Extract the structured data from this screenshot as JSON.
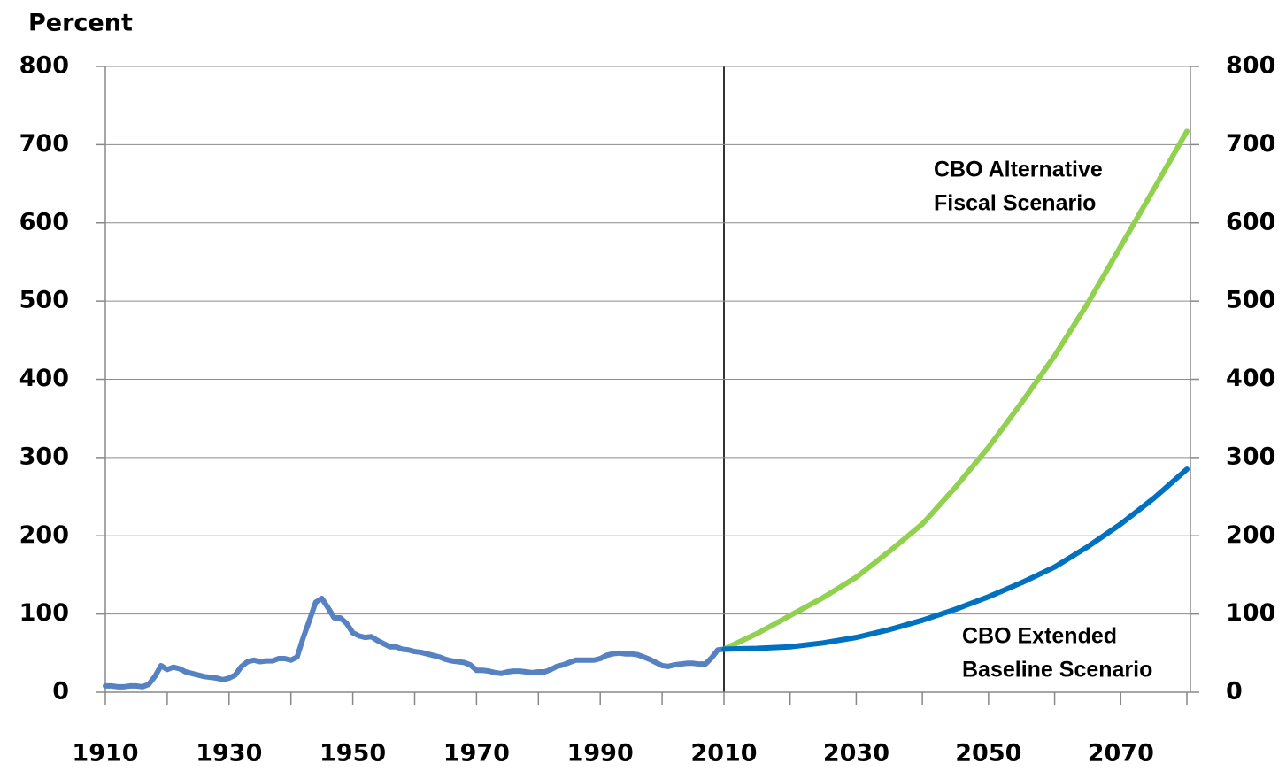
{
  "chart_data": [
    {
      "type": "line",
      "y_label": "Percent",
      "xlim": [
        1910,
        2010
      ],
      "xticks": [
        1910,
        1930,
        1950,
        1970,
        1990,
        2010
      ],
      "xminorticks": [
        1920,
        1940,
        1960,
        1980,
        2000
      ],
      "ylim": [
        0,
        800
      ],
      "yticks": [
        0,
        100,
        200,
        300,
        400,
        500,
        600,
        700,
        800
      ],
      "grid": true,
      "x": [
        1910,
        1911,
        1912,
        1913,
        1914,
        1915,
        1916,
        1917,
        1918,
        1919,
        1920,
        1921,
        1922,
        1923,
        1924,
        1925,
        1926,
        1927,
        1928,
        1929,
        1930,
        1931,
        1932,
        1933,
        1934,
        1935,
        1936,
        1937,
        1938,
        1939,
        1940,
        1941,
        1942,
        1943,
        1944,
        1945,
        1946,
        1947,
        1948,
        1949,
        1950,
        1951,
        1952,
        1953,
        1954,
        1955,
        1956,
        1957,
        1958,
        1959,
        1960,
        1961,
        1962,
        1963,
        1964,
        1965,
        1966,
        1967,
        1968,
        1969,
        1970,
        1971,
        1972,
        1973,
        1974,
        1975,
        1976,
        1977,
        1978,
        1979,
        1980,
        1981,
        1982,
        1983,
        1984,
        1985,
        1986,
        1987,
        1988,
        1989,
        1990,
        1991,
        1992,
        1993,
        1994,
        1995,
        1996,
        1997,
        1998,
        1999,
        2000,
        2001,
        2002,
        2003,
        2004,
        2005,
        2006,
        2007,
        2008,
        2009,
        2010
      ],
      "series": [
        {
          "color": "#5682c2",
          "values": [
            8,
            8,
            7,
            7,
            8,
            8,
            7,
            10,
            20,
            34,
            29,
            32,
            30,
            26,
            24,
            22,
            20,
            19,
            18,
            16,
            18,
            22,
            33,
            39,
            41,
            39,
            40,
            40,
            43,
            43,
            41,
            45,
            70,
            92,
            115,
            120,
            108,
            95,
            95,
            88,
            76,
            72,
            70,
            71,
            66,
            62,
            58,
            58,
            55,
            54,
            52,
            51,
            49,
            47,
            45,
            42,
            40,
            39,
            38,
            35,
            28,
            28,
            27,
            25,
            24,
            26,
            27,
            27,
            26,
            25,
            26,
            26,
            29,
            33,
            35,
            38,
            41,
            41,
            41,
            41,
            43,
            47,
            49,
            50,
            49,
            49,
            48,
            45,
            42,
            38,
            34,
            33,
            35,
            36,
            37,
            37,
            36,
            36,
            44,
            54,
            55
          ]
        }
      ]
    },
    {
      "type": "line",
      "xlim": [
        2010,
        2080
      ],
      "xticks": [
        2030,
        2050,
        2070
      ],
      "xminorticks": [
        2020,
        2040,
        2060,
        2080
      ],
      "y2lim": [
        0,
        800
      ],
      "y2ticks": [
        0,
        100,
        200,
        300,
        400,
        500,
        600,
        700,
        800
      ],
      "x": [
        2010,
        2015,
        2020,
        2025,
        2030,
        2035,
        2040,
        2045,
        2050,
        2055,
        2060,
        2065,
        2070,
        2075,
        2080
      ],
      "series": [
        {
          "label": [
            "CBO Alternative",
            "Fiscal Scenario"
          ],
          "color": "#92d050",
          "axis": "y2",
          "values": [
            55,
            75,
            98,
            121,
            147,
            180,
            215,
            262,
            313,
            370,
            430,
            497,
            570,
            643,
            717
          ]
        },
        {
          "label": [
            "CBO Extended",
            "Baseline Scenario"
          ],
          "color": "#0070c0",
          "axis": "y2",
          "values": [
            55,
            56,
            58,
            63,
            70,
            80,
            92,
            106,
            122,
            140,
            160,
            186,
            215,
            248,
            285
          ]
        }
      ]
    }
  ]
}
